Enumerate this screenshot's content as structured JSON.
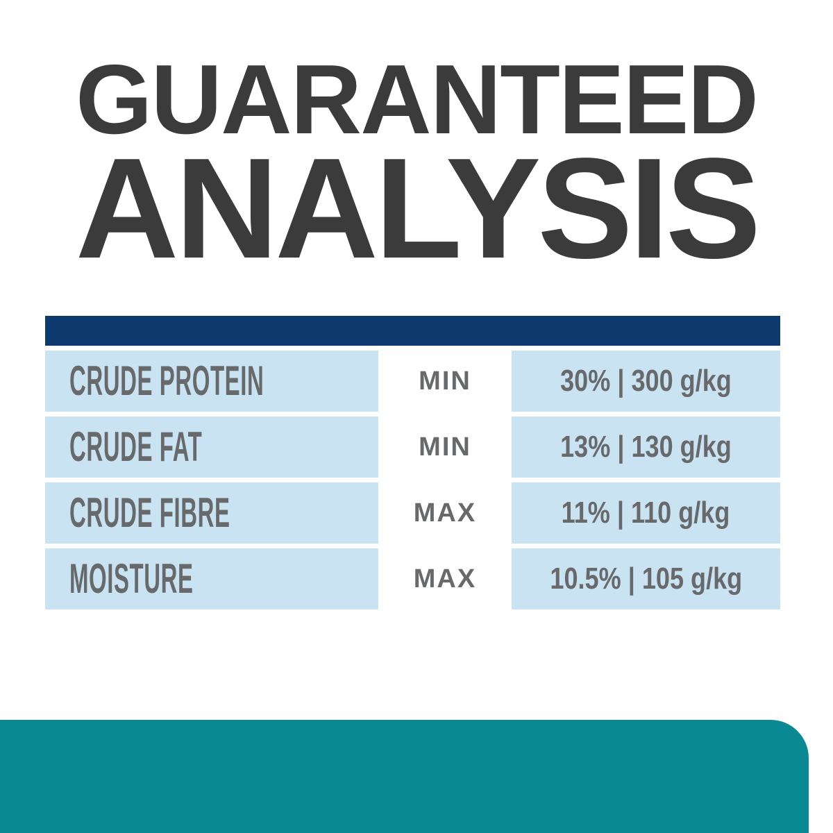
{
  "title": {
    "line1": "GUARANTEED",
    "line2": "ANALYSIS"
  },
  "table": {
    "rows": [
      {
        "label": "CRUDE PROTEIN",
        "qualifier": "MIN",
        "value": "30% | 300 g/kg"
      },
      {
        "label": "CRUDE FAT",
        "qualifier": "MIN",
        "value": "13% | 130 g/kg"
      },
      {
        "label": "CRUDE FIBRE",
        "qualifier": "MAX",
        "value": "11% | 110 g/kg"
      },
      {
        "label": "MOISTURE",
        "qualifier": "MAX",
        "value": "10.5% | 105 g/kg"
      }
    ]
  },
  "colors": {
    "title_text": "#3b3b3b",
    "header_bar_navy": "#0d3a6e",
    "row_light_blue": "#c9e3f2",
    "table_text_gray": "#68696b",
    "footer_teal": "#0a8893",
    "background": "#ffffff"
  }
}
